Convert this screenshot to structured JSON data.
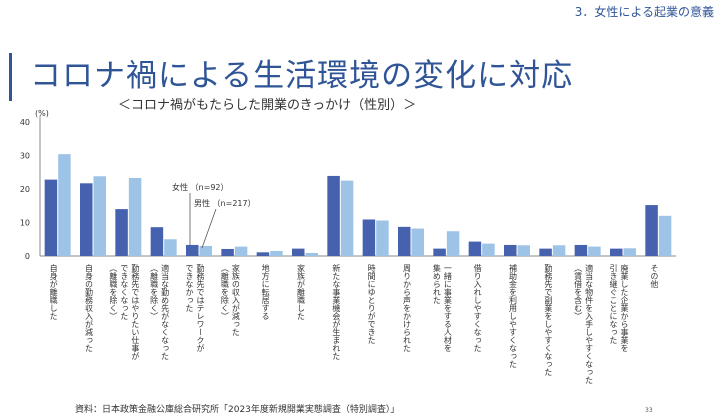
{
  "header": {
    "section": "3．女性による起業の意義",
    "title": "コロナ禍による生活環境の変化に対応",
    "subtitle": "＜コロナ禍がもたらした開業のきっかけ（性別）＞"
  },
  "footer": {
    "source": "資料：日本政策金融公庫総合研究所「2023年度新規開業実態調査（特別調査）」",
    "page": "33"
  },
  "colors": {
    "female": "#4661ad",
    "male": "#9dc3e6",
    "axis": "#888888"
  },
  "chart_data": {
    "type": "bar",
    "ylabel": "(%)",
    "ylim": [
      0,
      40
    ],
    "yticks": [
      0,
      10,
      20,
      30,
      40
    ],
    "categories": [
      "自身が離職した",
      "自身の勤務収入が減った",
      "勤務先ではやりたい仕事ができなくなった（離職を除く）",
      "適当な勤め先がなくなった（離職を除く）",
      "勤務先ではテレワークができなかった",
      "家族の収入が減った（離職を除く）",
      "地方に転居する",
      "家族が離職した",
      "新たな事業機会が生まれた",
      "時間にゆとりができた",
      "周りから声をかけられた",
      "一緒に事業をする人材を集められた",
      "借り入れしやすくなった",
      "補助金を利用しやすくなった",
      "勤務先で副業をしやすくなった",
      "適当な物件を入手しやすくなった（賃借を含む）",
      "廃業した企業から事業を引き継ぐことになった",
      "その他"
    ],
    "label_lines": [
      [
        "自身が離職した"
      ],
      [
        "自身の勤務収入が減った"
      ],
      [
        "勤務先ではやりたい仕事が",
        "できなくなった",
        "（離職を除く）"
      ],
      [
        "適当な勤め先がなくなった",
        "（離職を除く）"
      ],
      [
        "勤務先ではテレワークが",
        "できなかった"
      ],
      [
        "家族の収入が減った",
        "（離職を除く）"
      ],
      [
        "地方に転居する"
      ],
      [
        "家族が離職した"
      ],
      [
        "新たな事業機会が生まれた"
      ],
      [
        "時間にゆとりができた"
      ],
      [
        "周りから声をかけられた"
      ],
      [
        "一緒に事業をする人材を",
        "集められた"
      ],
      [
        "借り入れしやすくなった"
      ],
      [
        "補助金を利用しやすくなった"
      ],
      [
        "勤務先で副業をしやすくなった"
      ],
      [
        "適当な物件を入手しやすくなった",
        "（賃借を含む）"
      ],
      [
        "廃業した企業から事業を",
        "引き継ぐことになった"
      ],
      [
        "その他"
      ]
    ],
    "series": [
      {
        "name": "女性",
        "n_label": "（n=92）",
        "values": [
          22.8,
          21.7,
          14.0,
          8.6,
          3.3,
          2.1,
          1.1,
          2.2,
          23.9,
          10.9,
          8.7,
          2.2,
          4.3,
          3.3,
          2.2,
          3.3,
          2.2,
          15.2
        ]
      },
      {
        "name": "男性",
        "n_label": "（n=217）",
        "values": [
          30.4,
          23.8,
          23.3,
          5.0,
          3.0,
          2.8,
          1.5,
          0.9,
          22.5,
          10.6,
          8.2,
          7.4,
          3.7,
          3.2,
          3.2,
          2.8,
          2.3,
          12.0
        ]
      }
    ]
  }
}
